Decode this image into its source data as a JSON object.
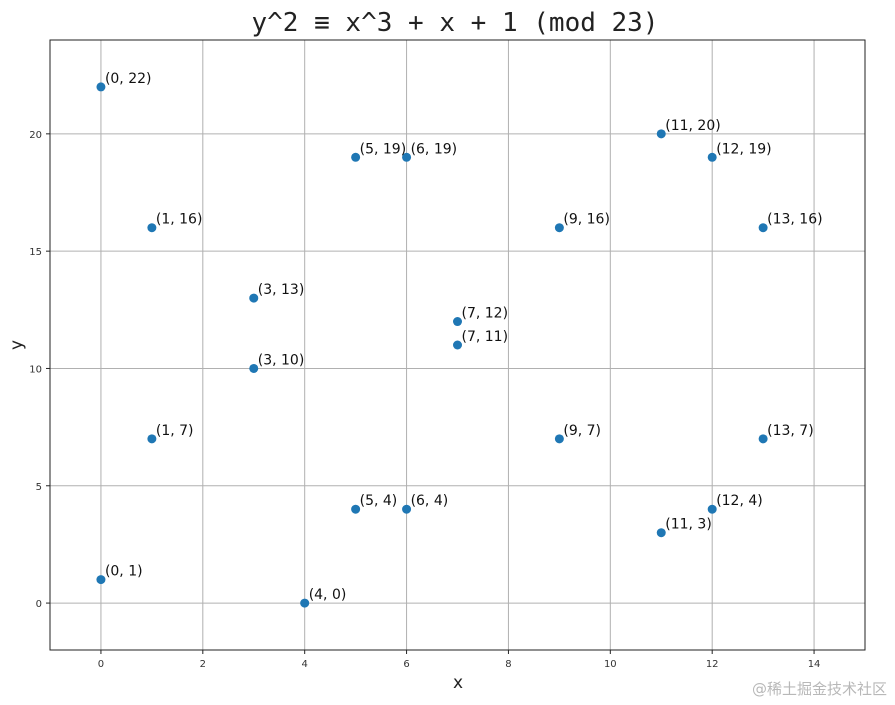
{
  "chart_data": {
    "type": "scatter",
    "title": "y^2 ≡ x^3 + x + 1 (mod 23)",
    "xlabel": "x",
    "ylabel": "y",
    "xlim": [
      -1,
      15
    ],
    "ylim": [
      -2,
      24
    ],
    "xticks": [
      0,
      2,
      4,
      6,
      8,
      10,
      12,
      14
    ],
    "yticks": [
      0,
      5,
      10,
      15,
      20
    ],
    "grid": true,
    "point_color": "#1f77b4",
    "points": [
      {
        "x": 0,
        "y": 1,
        "label": "(0, 1)"
      },
      {
        "x": 0,
        "y": 22,
        "label": "(0, 22)"
      },
      {
        "x": 1,
        "y": 7,
        "label": "(1, 7)"
      },
      {
        "x": 1,
        "y": 16,
        "label": "(1, 16)"
      },
      {
        "x": 3,
        "y": 10,
        "label": "(3, 10)"
      },
      {
        "x": 3,
        "y": 13,
        "label": "(3, 13)"
      },
      {
        "x": 4,
        "y": 0,
        "label": "(4, 0)"
      },
      {
        "x": 5,
        "y": 4,
        "label": "(5, 4)"
      },
      {
        "x": 5,
        "y": 19,
        "label": "(5, 19)"
      },
      {
        "x": 6,
        "y": 4,
        "label": "(6, 4)"
      },
      {
        "x": 6,
        "y": 19,
        "label": "(6, 19)"
      },
      {
        "x": 7,
        "y": 11,
        "label": "(7, 11)"
      },
      {
        "x": 7,
        "y": 12,
        "label": "(7, 12)"
      },
      {
        "x": 9,
        "y": 7,
        "label": "(9, 7)"
      },
      {
        "x": 9,
        "y": 16,
        "label": "(9, 16)"
      },
      {
        "x": 11,
        "y": 3,
        "label": "(11, 3)"
      },
      {
        "x": 11,
        "y": 20,
        "label": "(11, 20)"
      },
      {
        "x": 12,
        "y": 4,
        "label": "(12, 4)"
      },
      {
        "x": 12,
        "y": 19,
        "label": "(12, 19)"
      },
      {
        "x": 13,
        "y": 7,
        "label": "(13, 7)"
      },
      {
        "x": 13,
        "y": 16,
        "label": "(13, 16)"
      }
    ]
  },
  "watermark": "@稀土掘金技术社区"
}
